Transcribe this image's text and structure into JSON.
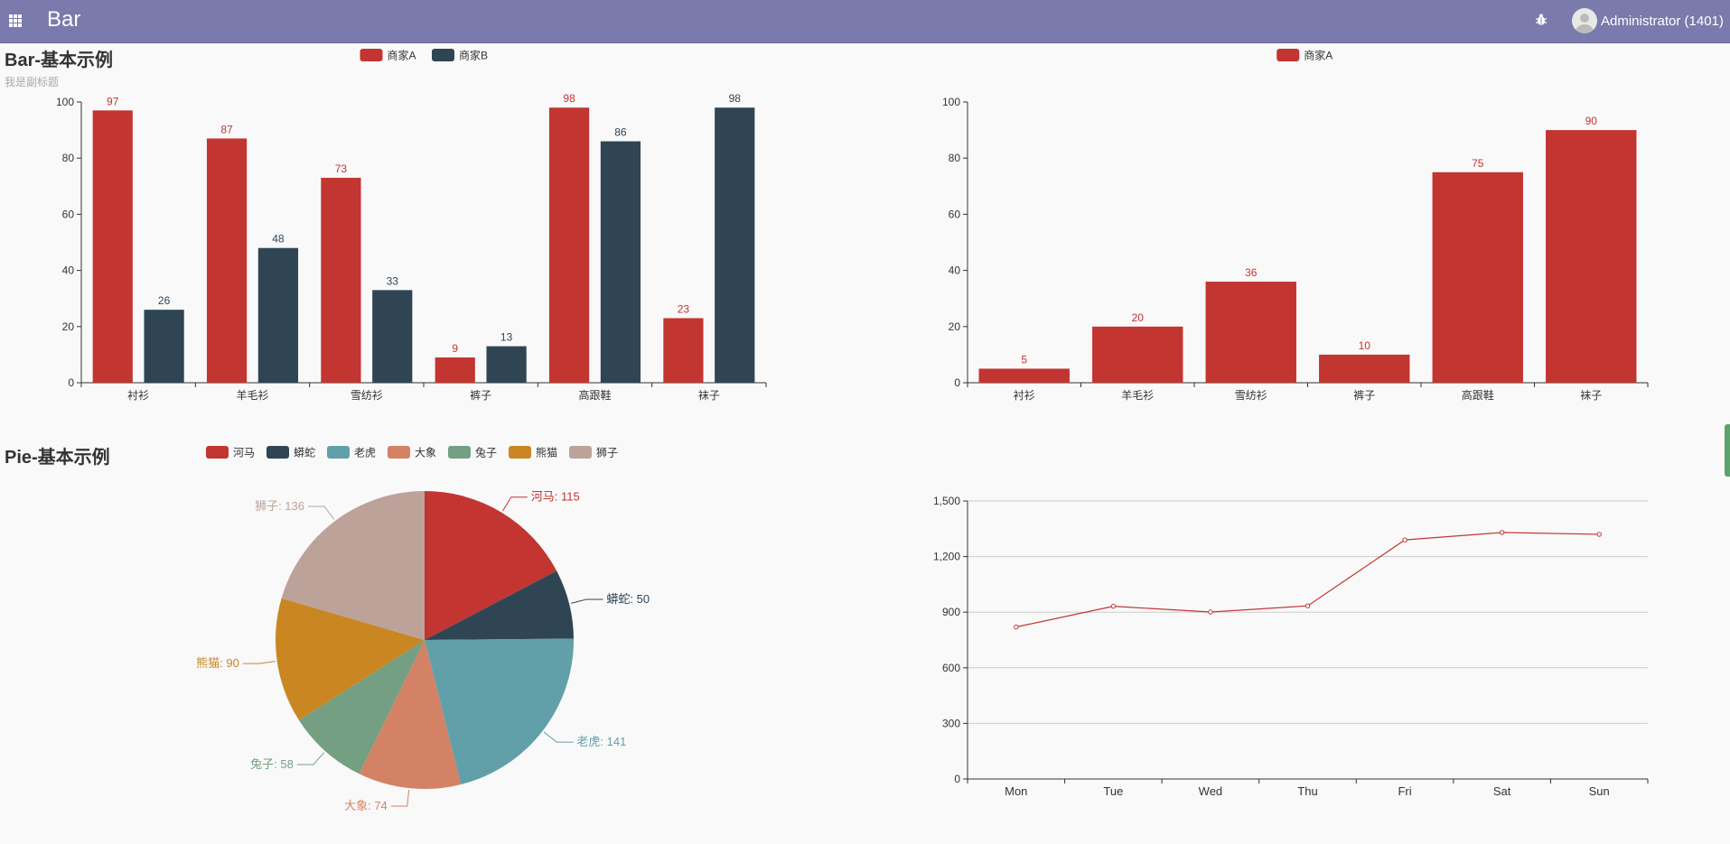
{
  "header": {
    "app_title": "Bar",
    "user_name": "Administrator (1401)",
    "apps_icon": "grid-icon",
    "debug_icon": "bug-icon",
    "bar_color": "#7a7aad"
  },
  "chart_data": [
    {
      "id": "bar1",
      "type": "bar",
      "title": "Bar-基本示例",
      "subtitle": "我是副标题",
      "categories": [
        "衬衫",
        "羊毛衫",
        "雪纺衫",
        "裤子",
        "高跟鞋",
        "袜子"
      ],
      "series": [
        {
          "name": "商家A",
          "values": [
            97,
            87,
            73,
            9,
            98,
            23
          ],
          "color": "#c23531"
        },
        {
          "name": "商家B",
          "values": [
            26,
            48,
            33,
            13,
            86,
            98
          ],
          "color": "#2f4554"
        }
      ],
      "ylim": [
        0,
        100
      ],
      "yticks": [
        0,
        20,
        40,
        60,
        80,
        100
      ],
      "legend_position": "top-center"
    },
    {
      "id": "bar2",
      "type": "bar",
      "title": "",
      "categories": [
        "衬衫",
        "羊毛衫",
        "雪纺衫",
        "裤子",
        "高跟鞋",
        "袜子"
      ],
      "series": [
        {
          "name": "商家A",
          "values": [
            5,
            20,
            36,
            10,
            75,
            90
          ],
          "color": "#c23531"
        }
      ],
      "ylim": [
        0,
        100
      ],
      "yticks": [
        0,
        20,
        40,
        60,
        80,
        100
      ],
      "legend_position": "top-center"
    },
    {
      "id": "pie1",
      "type": "pie",
      "title": "Pie-基本示例",
      "slices": [
        {
          "name": "河马",
          "value": 115,
          "color": "#c23531"
        },
        {
          "name": "蟒蛇",
          "value": 50,
          "color": "#2f4554"
        },
        {
          "name": "老虎",
          "value": 141,
          "color": "#61a0a8"
        },
        {
          "name": "大象",
          "value": 74,
          "color": "#d48265"
        },
        {
          "name": "兔子",
          "value": 58,
          "color": "#749f83"
        },
        {
          "name": "熊猫",
          "value": 90,
          "color": "#ca8622"
        },
        {
          "name": "狮子",
          "value": 136,
          "color": "#bda29a"
        }
      ],
      "legend_position": "top-left"
    },
    {
      "id": "line1",
      "type": "line",
      "title": "",
      "categories": [
        "Mon",
        "Tue",
        "Wed",
        "Thu",
        "Fri",
        "Sat",
        "Sun"
      ],
      "series": [
        {
          "name": "",
          "values": [
            820,
            932,
            901,
            934,
            1290,
            1330,
            1320
          ],
          "color": "#c23531"
        }
      ],
      "ylim": [
        0,
        1500
      ],
      "yticks": [
        0,
        300,
        600,
        900,
        1200,
        1500
      ],
      "ytick_labels": [
        "0",
        "300",
        "600",
        "900",
        "1,200",
        "1,500"
      ],
      "grid": true
    }
  ]
}
